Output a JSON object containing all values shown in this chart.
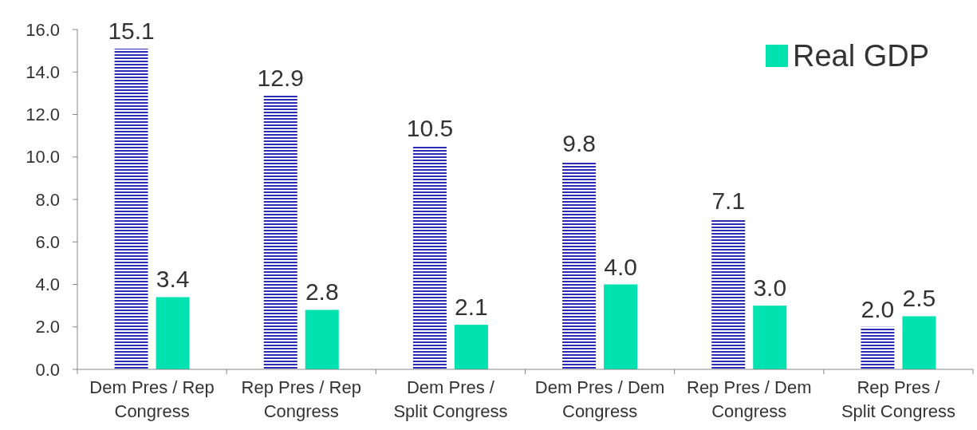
{
  "chart_data": {
    "type": "bar",
    "categories": [
      "Dem Pres / Rep Congress",
      "Rep Pres / Rep Congress",
      "Dem Pres / Split Congress",
      "Dem Pres / Dem Congress",
      "Rep Pres / Dem Congress",
      "Rep Pres / Split Congress"
    ],
    "series": [
      {
        "color": "#2b2bb5",
        "values": [
          15.1,
          12.9,
          10.5,
          9.8,
          7.1,
          2.0
        ],
        "value_labels": [
          "15.1",
          "12.9",
          "10.5",
          "9.8",
          "7.1",
          "2.0"
        ]
      },
      {
        "name": "Real GDP",
        "color": "#00e3b0",
        "values": [
          3.4,
          2.8,
          2.1,
          4.0,
          3.0,
          2.5
        ],
        "value_labels": [
          "3.4",
          "2.8",
          "2.1",
          "4.0",
          "3.0",
          "2.5"
        ]
      }
    ],
    "ylim": [
      0,
      16
    ],
    "yticks": [
      {
        "value": 0,
        "label": "0.0"
      },
      {
        "value": 2,
        "label": "2.0"
      },
      {
        "value": 4,
        "label": "4.0"
      },
      {
        "value": 6,
        "label": "6.0"
      },
      {
        "value": 8,
        "label": "8.0"
      },
      {
        "value": 10,
        "label": "10.0"
      },
      {
        "value": 12,
        "label": "12.0"
      },
      {
        "value": 14,
        "label": "14.0"
      },
      {
        "value": 16,
        "label": "16.0"
      }
    ],
    "legend": "top right",
    "grid": false
  }
}
